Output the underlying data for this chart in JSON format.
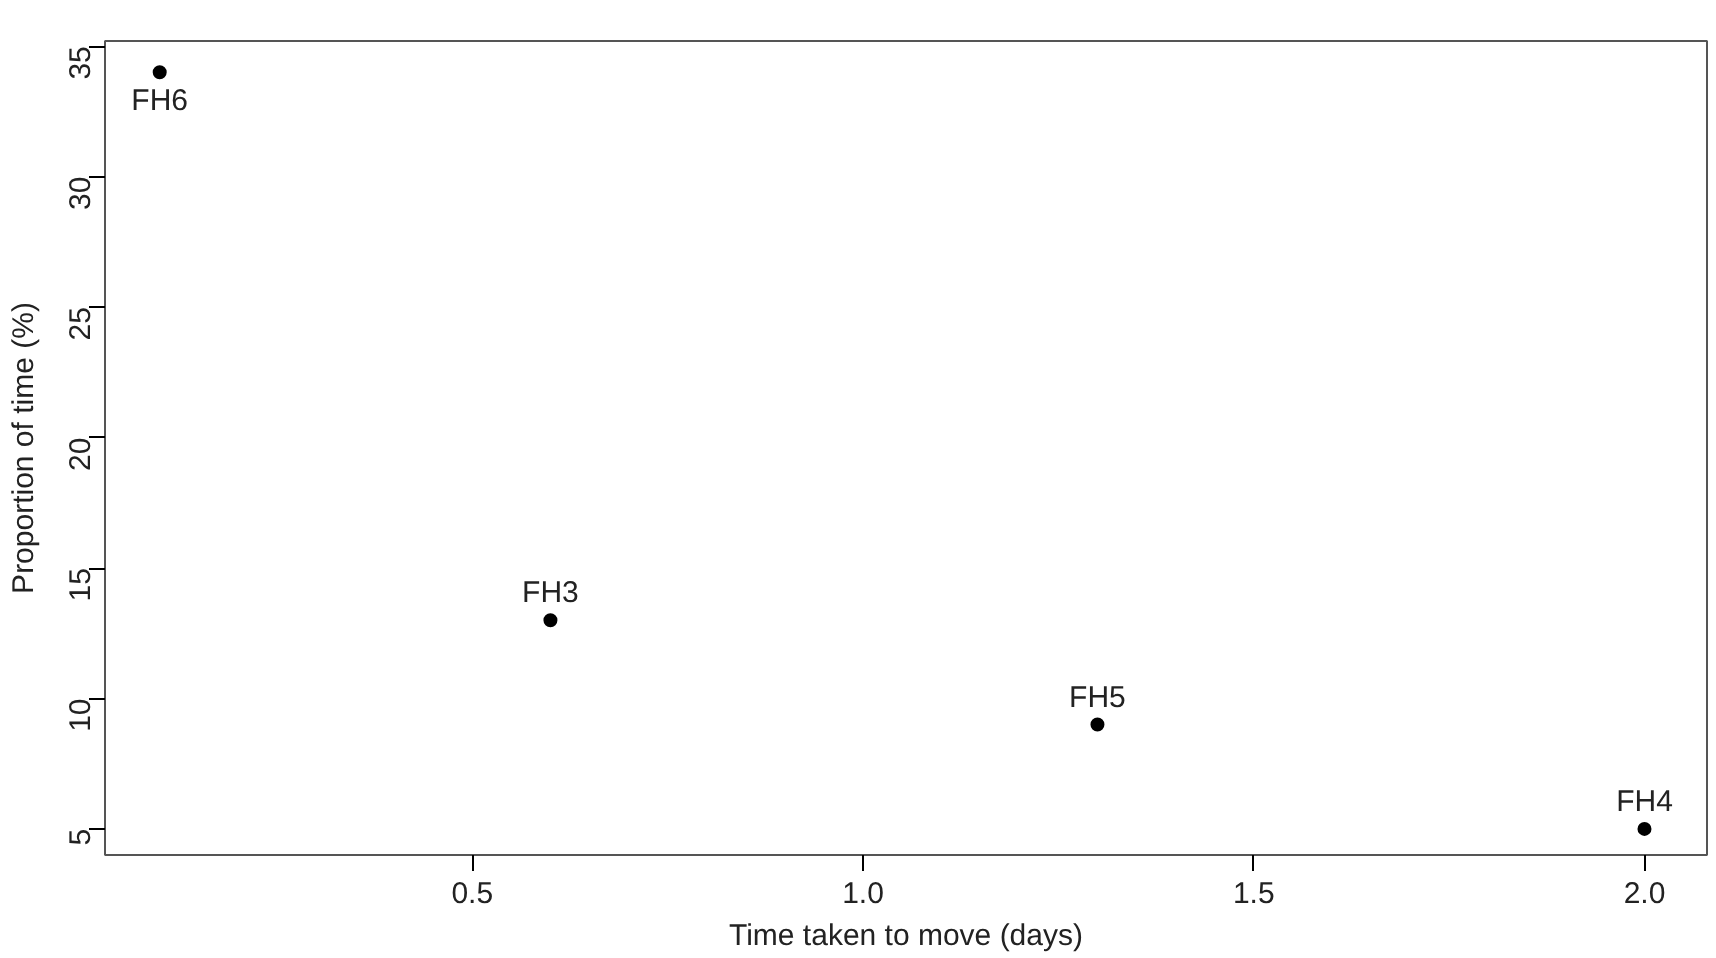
{
  "chart_data": {
    "type": "scatter",
    "xlabel": "Time taken to move (days)",
    "ylabel": "Proportion of time (%)",
    "x": [
      0.1,
      0.6,
      1.3,
      2.0
    ],
    "values": [
      34,
      13,
      9,
      5
    ],
    "color": "#000000",
    "marker": "circle",
    "annotations": [
      {
        "text": "FH6",
        "x": 0.1,
        "y": 34
      },
      {
        "text": "FH3",
        "x": 0.6,
        "y": 13
      },
      {
        "text": "FH5",
        "x": 1.3,
        "y": 9
      },
      {
        "text": "FH4",
        "x": 2.0,
        "y": 5
      }
    ],
    "xlim": [
      0.03,
      2.08
    ],
    "ylim": [
      4,
      35.2
    ],
    "xticks": [
      0.5,
      {
        "value": 1,
        "label": "1.0"
      },
      1.5,
      {
        "value": 2,
        "label": "2.0"
      }
    ],
    "yticks": [
      5,
      10,
      15,
      20,
      25,
      30,
      35
    ],
    "grid": false
  }
}
